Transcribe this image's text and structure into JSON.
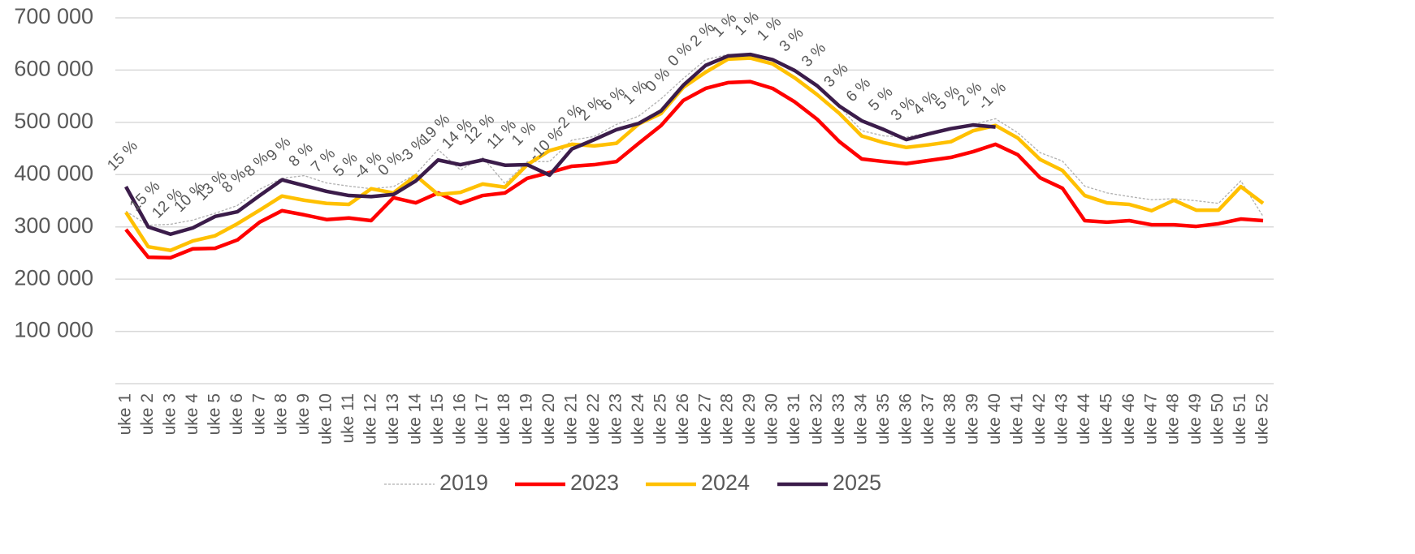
{
  "chart_data": {
    "type": "line",
    "categories": [
      "uke 1",
      "uke 2",
      "uke 3",
      "uke 4",
      "uke 5",
      "uke 6",
      "uke 7",
      "uke 8",
      "uke 9",
      "uke 10",
      "uke 11",
      "uke 12",
      "uke 13",
      "uke 14",
      "uke 15",
      "uke 16",
      "uke 17",
      "uke 18",
      "uke 19",
      "uke 20",
      "uke 21",
      "uke 22",
      "uke 23",
      "uke 24",
      "uke 25",
      "uke 26",
      "uke 27",
      "uke 28",
      "uke 29",
      "uke 30",
      "uke 31",
      "uke 32",
      "uke 33",
      "uke 34",
      "uke 35",
      "uke 36",
      "uke 37",
      "uke 38",
      "uke 39",
      "uke 40",
      "uke 41",
      "uke 42",
      "uke 43",
      "uke 44",
      "uke 45",
      "uke 46",
      "uke 47",
      "uke 48",
      "uke 49",
      "uke 50",
      "uke 51",
      "uke 52"
    ],
    "ylim": [
      0,
      700000
    ],
    "yticks": [
      {
        "value": 100000,
        "label": "100 000"
      },
      {
        "value": 200000,
        "label": "200 000"
      },
      {
        "value": 300000,
        "label": "300 000"
      },
      {
        "value": 400000,
        "label": "400 000"
      },
      {
        "value": 500000,
        "label": "500 000"
      },
      {
        "value": 600000,
        "label": "600 000"
      },
      {
        "value": 700000,
        "label": "700 000"
      }
    ],
    "grid": true,
    "legend": "bottom",
    "series": [
      {
        "name": "2019",
        "color": "#b0b0b0",
        "dashed": true,
        "values": [
          330000,
          303000,
          305000,
          313000,
          326000,
          341000,
          372000,
          393000,
          398000,
          384000,
          378000,
          373000,
          377000,
          401000,
          448000,
          409000,
          433000,
          383000,
          425000,
          425000,
          466000,
          473000,
          496000,
          512000,
          545000,
          584000,
          620000,
          630000,
          628000,
          620000,
          600000,
          570000,
          530000,
          484000,
          474000,
          472000,
          480000,
          490000,
          496000,
          507000,
          480000,
          442000,
          426000,
          378000,
          365000,
          358000,
          352000,
          354000,
          350000,
          345000,
          388000,
          320000
        ]
      },
      {
        "name": "2023",
        "color": "#ff0000",
        "values": [
          295000,
          242000,
          241000,
          258000,
          259000,
          275000,
          309000,
          331000,
          323000,
          314000,
          317000,
          312000,
          356000,
          346000,
          365000,
          345000,
          360000,
          365000,
          393000,
          404000,
          416000,
          419000,
          425000,
          460000,
          494000,
          542000,
          565000,
          576000,
          578000,
          565000,
          539000,
          506000,
          463000,
          430000,
          425000,
          421000,
          427000,
          433000,
          444000,
          458000,
          438000,
          394000,
          374000,
          312000,
          309000,
          312000,
          304000,
          304000,
          301000,
          306000,
          315000,
          312000
        ]
      },
      {
        "name": "2024",
        "color": "#ffc000",
        "values": [
          328000,
          262000,
          255000,
          273000,
          283000,
          306000,
          332000,
          359000,
          351000,
          345000,
          343000,
          373000,
          365000,
          398000,
          362000,
          366000,
          382000,
          376000,
          419000,
          446000,
          458000,
          455000,
          460000,
          497000,
          517000,
          567000,
          596000,
          621000,
          623000,
          612000,
          585000,
          553000,
          517000,
          474000,
          461000,
          452000,
          457000,
          463000,
          484000,
          494000,
          470000,
          429000,
          408000,
          360000,
          346000,
          343000,
          331000,
          351000,
          332000,
          332000,
          377000,
          345000
        ]
      },
      {
        "name": "2025",
        "color": "#3b1c4a",
        "values": [
          377000,
          300000,
          286000,
          298000,
          320000,
          329000,
          360000,
          390000,
          379000,
          368000,
          360000,
          358000,
          362000,
          388000,
          428000,
          419000,
          428000,
          418000,
          419000,
          399000,
          449000,
          467000,
          486000,
          498000,
          522000,
          571000,
          609000,
          627000,
          630000,
          620000,
          599000,
          570000,
          531000,
          503000,
          486000,
          467000,
          478000,
          488000,
          495000,
          491000,
          null,
          null,
          null,
          null,
          null,
          null,
          null,
          null,
          null,
          null,
          null,
          null
        ],
        "data_labels": [
          "15 %",
          "15 %",
          "12 %",
          "10 %",
          "13 %",
          "8 %",
          "8 %",
          "9 %",
          "8 %",
          "7 %",
          "5 %",
          "-4 %",
          "0 %",
          "-3 %",
          "19 %",
          "14 %",
          "12 %",
          "11 %",
          "1 %",
          "-10 %",
          "-2 %",
          "2 %",
          "6 %",
          "1 %",
          "0 %",
          "0 %",
          "2 %",
          "1 %",
          "1 %",
          "1 %",
          "3 %",
          "3 %",
          "3 %",
          "6 %",
          "5 %",
          "3 %",
          "4 %",
          "5 %",
          "2 %",
          "-1 %"
        ]
      }
    ]
  }
}
